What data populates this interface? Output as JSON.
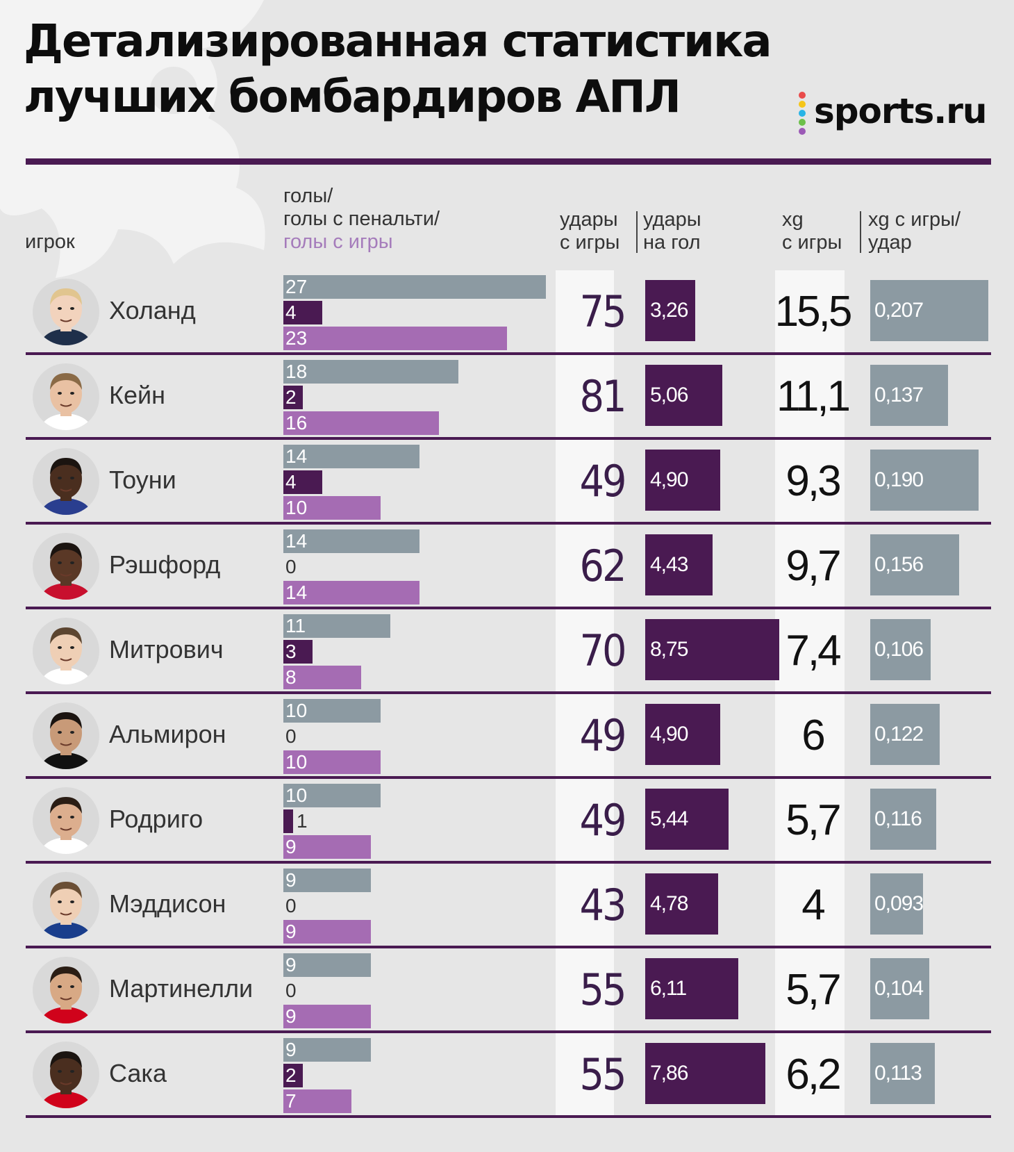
{
  "title": {
    "line1": "Детализированная статистика",
    "line2": "лучших бомбардиров АПЛ"
  },
  "brand": {
    "name": "sports.ru",
    "dot_colors": [
      "#e94b4b",
      "#f5c518",
      "#28b4e6",
      "#6cc04a",
      "#9b59b6"
    ]
  },
  "colors": {
    "gray": "#8c9aa2",
    "dark_purple": "#4a1a52",
    "light_purple": "#a56cb3",
    "divider": "#4a1a52"
  },
  "header": {
    "player": "игрок",
    "goals_line1": "голы/",
    "goals_line2": "голы с пенальти/",
    "goals_line3": "голы с игры",
    "shots_line1": "удары",
    "shots_line2": "с игры",
    "spg_line1": "удары",
    "spg_line2": "на гол",
    "xg_line1": "xg",
    "xg_line2": "с игры",
    "xgps_line1": "xg с игры/",
    "xgps_line2": "удар"
  },
  "players": [
    {
      "name": "Холанд",
      "goals": "27",
      "penalty_goals": "4",
      "open_play_goals": "23",
      "shots": "75",
      "shots_per_goal": "3,26",
      "xg": "15,5",
      "xg_per_shot": "0,207",
      "skin": "#f2d3bd",
      "hair": "#e1c58f",
      "shirt": "#1f2f4a"
    },
    {
      "name": "Кейн",
      "goals": "18",
      "penalty_goals": "2",
      "open_play_goals": "16",
      "shots": "81",
      "shots_per_goal": "5,06",
      "xg": "11,1",
      "xg_per_shot": "0,137",
      "skin": "#e9c1a3",
      "hair": "#8a6a46",
      "shirt": "#ffffff"
    },
    {
      "name": "Тоуни",
      "goals": "14",
      "penalty_goals": "4",
      "open_play_goals": "10",
      "shots": "49",
      "shots_per_goal": "4,90",
      "xg": "9,3",
      "xg_per_shot": "0,190",
      "skin": "#4a2e1f",
      "hair": "#1b1410",
      "shirt": "#2a3e8f"
    },
    {
      "name": "Рэшфорд",
      "goals": "14",
      "penalty_goals": "0",
      "open_play_goals": "14",
      "shots": "62",
      "shots_per_goal": "4,43",
      "xg": "9,7",
      "xg_per_shot": "0,156",
      "skin": "#5a3826",
      "hair": "#1b1410",
      "shirt": "#c8102e"
    },
    {
      "name": "Митрович",
      "goals": "11",
      "penalty_goals": "3",
      "open_play_goals": "8",
      "shots": "70",
      "shots_per_goal": "8,75",
      "xg": "7,4",
      "xg_per_shot": "0,106",
      "skin": "#efcfb5",
      "hair": "#5c4530",
      "shirt": "#ffffff"
    },
    {
      "name": "Альмирон",
      "goals": "10",
      "penalty_goals": "0",
      "open_play_goals": "10",
      "shots": "49",
      "shots_per_goal": "4,90",
      "xg": "6",
      "xg_per_shot": "0,122",
      "skin": "#c89a78",
      "hair": "#1b1410",
      "shirt": "#111111"
    },
    {
      "name": "Родриго",
      "goals": "10",
      "penalty_goals": "1",
      "open_play_goals": "9",
      "shots": "49",
      "shots_per_goal": "5,44",
      "xg": "5,7",
      "xg_per_shot": "0,116",
      "skin": "#dcae8e",
      "hair": "#2a1d14",
      "shirt": "#ffffff"
    },
    {
      "name": "Мэддисон",
      "goals": "9",
      "penalty_goals": "0",
      "open_play_goals": "9",
      "shots": "43",
      "shots_per_goal": "4,78",
      "xg": "4",
      "xg_per_shot": "0,093",
      "skin": "#efcfb5",
      "hair": "#6b4f35",
      "shirt": "#1a3e8c"
    },
    {
      "name": "Мартинелли",
      "goals": "9",
      "penalty_goals": "0",
      "open_play_goals": "9",
      "shots": "55",
      "shots_per_goal": "6,11",
      "xg": "5,7",
      "xg_per_shot": "0,104",
      "skin": "#d8a985",
      "hair": "#2a1d14",
      "shirt": "#d0021b"
    },
    {
      "name": "Сака",
      "goals": "9",
      "penalty_goals": "2",
      "open_play_goals": "7",
      "shots": "55",
      "shots_per_goal": "7,86",
      "xg": "6,2",
      "xg_per_shot": "0,113",
      "skin": "#4a2e1f",
      "hair": "#1b1410",
      "shirt": "#d0021b"
    }
  ]
}
